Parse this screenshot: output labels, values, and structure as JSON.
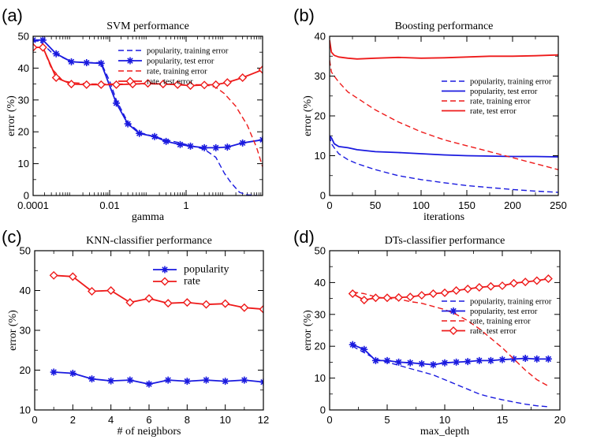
{
  "chart_data": [
    {
      "panel_label": "(a)",
      "type": "line",
      "title": "SVM  performance",
      "xlabel": "gamma",
      "ylabel": "error (%)",
      "xscale": "log",
      "xlim": [
        0.0001,
        100
      ],
      "ylim": [
        0,
        50
      ],
      "xticks": [
        0.0001,
        0.01,
        1
      ],
      "xtick_labels": [
        "0.0001",
        "0.01",
        "1"
      ],
      "yticks": [
        0,
        10,
        20,
        30,
        40,
        50
      ],
      "ytick_labels": [
        "0",
        "10",
        "20",
        "30",
        "40",
        "50"
      ],
      "legend_position": "top-right",
      "series": [
        {
          "name": "popularity, training error",
          "color": "#1a1adf",
          "dash": "dashed",
          "marker": "none",
          "x": [
            0.0001,
            0.00015,
            0.0003,
            0.001,
            0.003,
            0.006,
            0.01,
            0.015,
            0.03,
            0.06,
            0.15,
            0.3,
            0.7,
            1.5,
            3,
            6,
            10,
            15,
            25,
            40,
            70
          ],
          "y": [
            48.5,
            48.5,
            45,
            42,
            41.7,
            41.7,
            36,
            30,
            23,
            19.8,
            18.5,
            17.5,
            16.5,
            15.5,
            14.5,
            12,
            7,
            4,
            1,
            0.2,
            0
          ]
        },
        {
          "name": "popularity, test error",
          "color": "#1a1adf",
          "dash": "solid",
          "marker": "asterisk",
          "x": [
            0.0001,
            0.00018,
            0.0004,
            0.001,
            0.0025,
            0.006,
            0.015,
            0.03,
            0.06,
            0.15,
            0.3,
            0.7,
            1.3,
            3,
            6,
            12,
            30,
            100
          ],
          "y": [
            48.8,
            48.8,
            44.5,
            42,
            41.7,
            41.5,
            29,
            22.5,
            19.5,
            18.5,
            17,
            16,
            15.5,
            15,
            15,
            15.2,
            16.5,
            17.5
          ]
        },
        {
          "name": "rate, training error",
          "color": "#ee1a1a",
          "dash": "dashed",
          "marker": "none",
          "x": [
            0.0001,
            0.00018,
            0.0003,
            0.0006,
            0.001,
            0.003,
            0.01,
            0.03,
            0.1,
            0.3,
            1,
            3,
            6,
            10,
            20,
            40,
            70,
            100
          ],
          "y": [
            46.5,
            46.5,
            40,
            36,
            35.5,
            35,
            35,
            35,
            35,
            35,
            34.8,
            34.8,
            34,
            32,
            28,
            22,
            15,
            9
          ]
        },
        {
          "name": "rate, test error",
          "color": "#ee1a1a",
          "dash": "solid",
          "marker": "diamond",
          "x": [
            0.0001,
            0.00018,
            0.0004,
            0.001,
            0.0025,
            0.006,
            0.015,
            0.04,
            0.1,
            0.25,
            0.6,
            1.3,
            3,
            6,
            12,
            30,
            100
          ],
          "y": [
            46.5,
            46.5,
            37,
            35,
            34.8,
            34.8,
            34.8,
            35,
            35.2,
            35,
            34.8,
            34.5,
            34.7,
            34.8,
            35.5,
            37,
            39.5
          ]
        }
      ]
    },
    {
      "panel_label": "(b)",
      "type": "line",
      "title": "Boosting  performance",
      "xlabel": "iterations",
      "ylabel": "error (%)",
      "xlim": [
        0,
        250
      ],
      "ylim": [
        0,
        40
      ],
      "xticks": [
        0,
        50,
        100,
        150,
        200,
        250
      ],
      "xtick_labels": [
        "0",
        "50",
        "100",
        "150",
        "200",
        "250"
      ],
      "yticks": [
        0,
        10,
        20,
        30,
        40
      ],
      "ytick_labels": [
        "0",
        "10",
        "20",
        "30",
        "40"
      ],
      "legend_position": "center-right",
      "series": [
        {
          "name": "popularity, training error",
          "color": "#1a1adf",
          "dash": "dashed",
          "marker": "none",
          "x": [
            0,
            2,
            5,
            10,
            20,
            30,
            50,
            75,
            100,
            125,
            150,
            175,
            200,
            225,
            250
          ],
          "y": [
            15,
            13,
            12,
            10.5,
            9,
            8,
            6.5,
            5,
            4,
            3.2,
            2.5,
            2,
            1.5,
            1.1,
            0.8
          ]
        },
        {
          "name": "popularity, test error",
          "color": "#1a1adf",
          "dash": "solid",
          "marker": "none",
          "x": [
            0,
            2,
            5,
            10,
            20,
            30,
            50,
            75,
            100,
            125,
            150,
            175,
            200,
            225,
            250
          ],
          "y": [
            15,
            14.5,
            13,
            12.3,
            12,
            11.5,
            11,
            10.8,
            10.5,
            10.2,
            10,
            9.9,
            9.8,
            9.8,
            9.7
          ]
        },
        {
          "name": "rate, training error",
          "color": "#ee1a1a",
          "dash": "dashed",
          "marker": "none",
          "x": [
            0,
            2,
            5,
            10,
            20,
            30,
            50,
            75,
            100,
            125,
            150,
            175,
            200,
            225,
            250
          ],
          "y": [
            34,
            31,
            30,
            28.5,
            26,
            24.5,
            21.5,
            18.5,
            16,
            14,
            12.5,
            11,
            9.5,
            8,
            6.5
          ]
        },
        {
          "name": "rate, test error",
          "color": "#ee1a1a",
          "dash": "solid",
          "marker": "none",
          "x": [
            0,
            2,
            5,
            10,
            20,
            30,
            50,
            75,
            100,
            125,
            150,
            175,
            200,
            225,
            250
          ],
          "y": [
            39,
            36,
            35.2,
            34.8,
            34.5,
            34.3,
            34.5,
            34.7,
            34.5,
            34.6,
            34.8,
            35,
            35,
            35.1,
            35.3
          ]
        }
      ]
    },
    {
      "panel_label": "(c)",
      "type": "line",
      "title": "KNN-classifier performance",
      "xlabel": "# of neighbors",
      "ylabel": "error (%)",
      "xlim": [
        0,
        12
      ],
      "ylim": [
        10,
        50
      ],
      "xticks": [
        0,
        2,
        4,
        6,
        8,
        10,
        12
      ],
      "xtick_labels": [
        "0",
        "2",
        "4",
        "6",
        "8",
        "10",
        "12"
      ],
      "yticks": [
        10,
        20,
        30,
        40,
        50
      ],
      "ytick_labels": [
        "10",
        "20",
        "30",
        "40",
        "50"
      ],
      "legend_position": "top-right",
      "series": [
        {
          "name": "popularity",
          "color": "#1a1adf",
          "dash": "solid",
          "marker": "asterisk",
          "x": [
            1,
            2,
            3,
            4,
            5,
            6,
            7,
            8,
            9,
            10,
            11,
            12
          ],
          "y": [
            19.5,
            19.2,
            17.8,
            17.3,
            17.5,
            16.5,
            17.5,
            17.2,
            17.5,
            17.2,
            17.5,
            17.0
          ]
        },
        {
          "name": "rate",
          "color": "#ee1a1a",
          "dash": "solid",
          "marker": "diamond",
          "x": [
            1,
            2,
            3,
            4,
            5,
            6,
            7,
            8,
            9,
            10,
            11,
            12
          ],
          "y": [
            43.8,
            43.5,
            39.8,
            40.0,
            37.0,
            38.0,
            36.8,
            37.0,
            36.5,
            36.7,
            35.7,
            35.3
          ]
        }
      ]
    },
    {
      "panel_label": "(d)",
      "type": "line",
      "title": "DTs-classifier performance",
      "xlabel": "max_depth",
      "ylabel": "error (%)",
      "xlim": [
        0,
        20
      ],
      "ylim": [
        0,
        50
      ],
      "xticks": [
        0,
        5,
        10,
        15,
        20
      ],
      "xtick_labels": [
        "0",
        "5",
        "10",
        "15",
        "20"
      ],
      "yticks": [
        0,
        10,
        20,
        30,
        40,
        50
      ],
      "ytick_labels": [
        "0",
        "10",
        "20",
        "30",
        "40",
        "50"
      ],
      "legend_position": "center-right",
      "series": [
        {
          "name": "popularity, training error",
          "color": "#1a1adf",
          "dash": "dashed",
          "marker": "none",
          "x": [
            2,
            3,
            4,
            5,
            6,
            7,
            8,
            9,
            10,
            11,
            12,
            13,
            14,
            15,
            16,
            17,
            18,
            19
          ],
          "y": [
            20,
            18,
            16,
            15,
            14,
            13,
            12,
            11,
            9.5,
            8,
            6.5,
            5,
            4,
            3.2,
            2.5,
            1.8,
            1.3,
            1.0
          ]
        },
        {
          "name": "popularity, test error",
          "color": "#1a1adf",
          "dash": "solid",
          "marker": "asterisk",
          "x": [
            2,
            3,
            4,
            5,
            6,
            7,
            8,
            9,
            10,
            11,
            12,
            13,
            14,
            15,
            16,
            17,
            18,
            19
          ],
          "y": [
            20.5,
            19,
            15.5,
            15.5,
            15,
            14.8,
            14.5,
            14.2,
            14.8,
            15,
            15.2,
            15.5,
            15.5,
            15.8,
            16,
            16.2,
            16,
            16
          ]
        },
        {
          "name": "rate, training error",
          "color": "#ee1a1a",
          "dash": "dashed",
          "marker": "none",
          "x": [
            2,
            3,
            4,
            5,
            6,
            7,
            8,
            9,
            10,
            11,
            12,
            13,
            14,
            15,
            16,
            17,
            18,
            19
          ],
          "y": [
            37,
            36.5,
            35.5,
            35,
            34.8,
            34,
            33.5,
            32.5,
            31.5,
            30,
            28,
            25.5,
            22.5,
            19.5,
            16,
            12.5,
            9.5,
            7.5
          ]
        },
        {
          "name": "rate, test error",
          "color": "#ee1a1a",
          "dash": "solid",
          "marker": "diamond",
          "x": [
            2,
            3,
            4,
            5,
            6,
            7,
            8,
            9,
            10,
            11,
            12,
            13,
            14,
            15,
            16,
            17,
            18,
            19
          ],
          "y": [
            36.5,
            34.5,
            35.2,
            35.2,
            35.3,
            35.5,
            36,
            36.5,
            36.8,
            37.5,
            38,
            38.5,
            38.8,
            39,
            39.8,
            40.2,
            40.6,
            41.2
          ]
        }
      ]
    }
  ]
}
